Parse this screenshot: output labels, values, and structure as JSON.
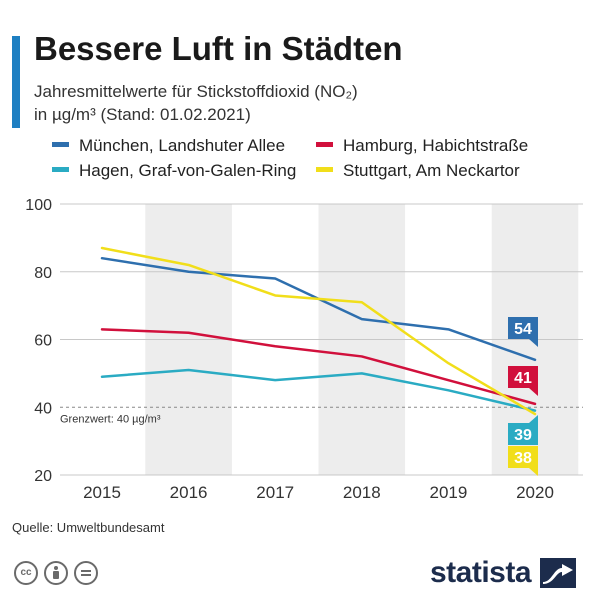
{
  "header": {
    "title": "Bessere Luft in Städten",
    "subtitle_line1": "Jahresmittelwerte für Stickstoffdioxid (NO₂)",
    "subtitle_line2": "in µg/m³ (Stand: 01.02.2021)"
  },
  "colors": {
    "accent": "#1e7fc2",
    "muenchen": "#2e6fae",
    "hamburg": "#d1103c",
    "hagen": "#2aabc3",
    "stuttgart": "#f1de1a",
    "grid": "#c8c8c8",
    "band": "#ededed"
  },
  "chart_data": {
    "type": "line",
    "x": [
      "2015",
      "2016",
      "2017",
      "2018",
      "2019",
      "2020"
    ],
    "ylim": [
      20,
      100
    ],
    "yticks": [
      "20",
      "40",
      "60",
      "80",
      "100"
    ],
    "grid": true,
    "legend_position": "top",
    "series": [
      {
        "name": "München, Landshuter Allee",
        "values": [
          84,
          80,
          78,
          66,
          63,
          54
        ],
        "end_label": "54"
      },
      {
        "name": "Hamburg, Habichtstraße",
        "values": [
          63,
          62,
          58,
          55,
          48,
          41
        ],
        "end_label": "41"
      },
      {
        "name": "Hagen, Graf-von-Galen-Ring",
        "values": [
          49,
          51,
          48,
          50,
          45,
          39
        ],
        "end_label": "39"
      },
      {
        "name": "Stuttgart, Am Neckartor",
        "values": [
          87,
          82,
          73,
          71,
          53,
          38
        ],
        "end_label": "38"
      }
    ],
    "reference_line": {
      "value": 40,
      "label": "Grenzwert: 40 µg/m³"
    }
  },
  "footer": {
    "source": "Quelle: Umweltbundesamt",
    "brand": "statista",
    "license_icons": [
      "cc-icon",
      "attribution-icon",
      "no-derivatives-icon"
    ]
  }
}
